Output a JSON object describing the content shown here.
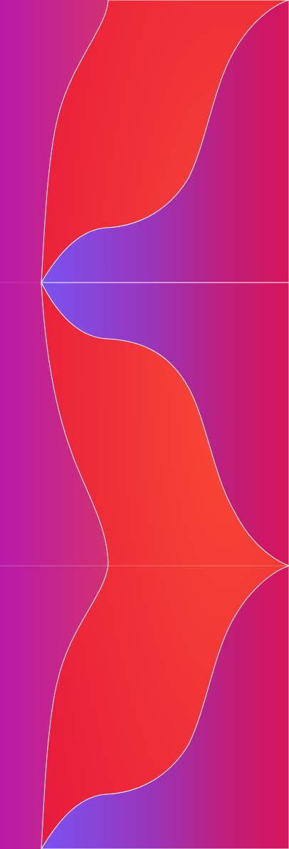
{
  "artwork": {
    "colors": {
      "magenta": "#b81aa8",
      "crimson": "#d6155a",
      "red": "#ec2433",
      "orange_red": "#f94a34",
      "violet": "#7b52f2",
      "outline": "#ffffff"
    }
  }
}
